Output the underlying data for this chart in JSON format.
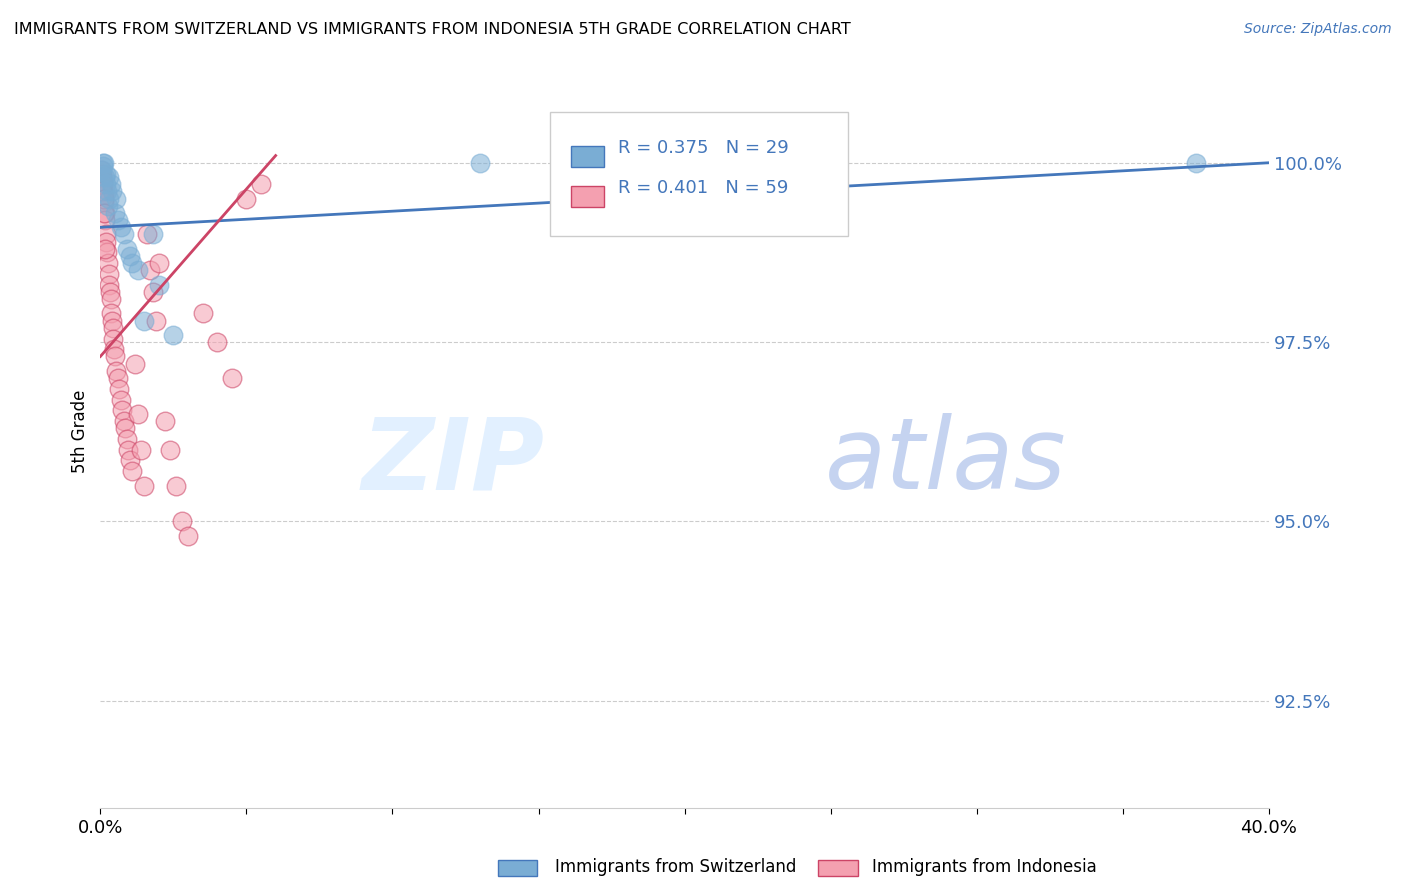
{
  "title": "IMMIGRANTS FROM SWITZERLAND VS IMMIGRANTS FROM INDONESIA 5TH GRADE CORRELATION CHART",
  "source": "Source: ZipAtlas.com",
  "ylabel": "5th Grade",
  "ytick_values": [
    92.5,
    95.0,
    97.5,
    100.0
  ],
  "xlim": [
    0.0,
    40.0
  ],
  "ylim": [
    91.0,
    101.5
  ],
  "r_switzerland": 0.375,
  "n_switzerland": 29,
  "r_indonesia": 0.401,
  "n_indonesia": 59,
  "color_switzerland": "#7AADD4",
  "color_indonesia": "#F4A0B0",
  "trendline_color_switzerland": "#4477BB",
  "trendline_color_indonesia": "#CC4466",
  "legend_label_switzerland": "Immigrants from Switzerland",
  "legend_label_indonesia": "Immigrants from Indonesia",
  "watermark_zip": "ZIP",
  "watermark_atlas": "atlas",
  "switzerland_x": [
    0.05,
    0.08,
    0.1,
    0.12,
    0.15,
    0.18,
    0.2,
    0.22,
    0.25,
    0.28,
    0.3,
    0.35,
    0.4,
    0.5,
    0.55,
    0.6,
    0.7,
    0.8,
    0.9,
    1.0,
    1.1,
    1.3,
    1.5,
    1.8,
    2.0,
    2.5,
    13.0,
    21.0,
    37.5
  ],
  "switzerland_y": [
    99.9,
    100.0,
    99.95,
    100.0,
    99.8,
    99.7,
    99.85,
    99.6,
    99.4,
    99.5,
    99.8,
    99.7,
    99.6,
    99.3,
    99.5,
    99.2,
    99.1,
    99.0,
    98.8,
    98.7,
    98.6,
    98.5,
    97.8,
    99.0,
    98.3,
    97.6,
    100.0,
    100.0,
    100.0
  ],
  "indonesia_x": [
    0.02,
    0.04,
    0.06,
    0.08,
    0.09,
    0.1,
    0.12,
    0.14,
    0.15,
    0.16,
    0.18,
    0.2,
    0.22,
    0.25,
    0.28,
    0.3,
    0.32,
    0.35,
    0.38,
    0.4,
    0.42,
    0.45,
    0.48,
    0.5,
    0.55,
    0.6,
    0.65,
    0.7,
    0.75,
    0.8,
    0.85,
    0.9,
    0.95,
    1.0,
    1.1,
    1.2,
    1.3,
    1.4,
    1.5,
    1.6,
    1.7,
    1.8,
    1.9,
    2.0,
    2.2,
    2.4,
    2.6,
    2.8,
    3.0,
    3.5,
    4.0,
    4.5,
    5.0,
    0.05,
    0.07,
    0.11,
    0.13,
    0.17,
    5.5
  ],
  "indonesia_y": [
    99.9,
    99.85,
    99.8,
    99.75,
    99.7,
    99.65,
    99.55,
    99.45,
    99.3,
    99.2,
    99.0,
    98.9,
    98.75,
    98.6,
    98.45,
    98.3,
    98.2,
    98.1,
    97.9,
    97.8,
    97.7,
    97.55,
    97.4,
    97.3,
    97.1,
    97.0,
    96.85,
    96.7,
    96.55,
    96.4,
    96.3,
    96.15,
    96.0,
    95.85,
    95.7,
    97.2,
    96.5,
    96.0,
    95.5,
    99.0,
    98.5,
    98.2,
    97.8,
    98.6,
    96.4,
    96.0,
    95.5,
    95.0,
    94.8,
    97.9,
    97.5,
    97.0,
    99.5,
    99.7,
    99.6,
    99.5,
    99.3,
    98.8,
    99.7
  ],
  "sw_trendline_x0": 0.0,
  "sw_trendline_y0": 99.1,
  "sw_trendline_x1": 40.0,
  "sw_trendline_y1": 100.0,
  "id_trendline_x0": 0.0,
  "id_trendline_y0": 97.3,
  "id_trendline_x1": 6.0,
  "id_trendline_y1": 100.1
}
